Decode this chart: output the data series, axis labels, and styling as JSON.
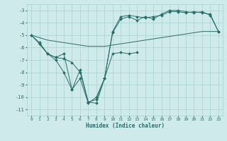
{
  "xlabel": "Humidex (Indice chaleur)",
  "bg_color": "#ceeaea",
  "line_color": "#2a6e6a",
  "grid_color": "#aacfcf",
  "xlim": [
    -0.5,
    23.5
  ],
  "ylim": [
    -11.5,
    -2.5
  ],
  "yticks": [
    -11,
    -10,
    -9,
    -8,
    -7,
    -6,
    -5,
    -4,
    -3
  ],
  "xticks": [
    0,
    1,
    2,
    3,
    4,
    5,
    6,
    7,
    8,
    9,
    10,
    11,
    12,
    13,
    14,
    15,
    16,
    17,
    18,
    19,
    20,
    21,
    22,
    23
  ],
  "series": [
    {
      "x": [
        0,
        1,
        2,
        3,
        4,
        5,
        6,
        7,
        8,
        9,
        10,
        11,
        12,
        13,
        14,
        15,
        16,
        17,
        18,
        19,
        20,
        21,
        22,
        23
      ],
      "y": [
        -5.0,
        -5.2,
        -5.4,
        -5.5,
        -5.6,
        -5.7,
        -5.8,
        -5.9,
        -5.9,
        -5.9,
        -5.8,
        -5.7,
        -5.6,
        -5.5,
        -5.4,
        -5.3,
        -5.2,
        -5.1,
        -5.0,
        -4.9,
        -4.8,
        -4.7,
        -4.7,
        -4.7
      ],
      "marker": null
    },
    {
      "x": [
        1,
        2,
        3,
        4,
        5,
        6,
        7,
        8,
        9,
        10,
        11,
        12,
        13
      ],
      "y": [
        -5.7,
        -6.5,
        -6.8,
        -6.9,
        -7.2,
        -8.0,
        -10.4,
        -10.5,
        -8.5,
        -6.5,
        -6.4,
        -6.5,
        -6.4
      ],
      "marker": "D"
    },
    {
      "x": [
        0,
        1,
        2,
        3,
        4,
        5,
        6,
        7,
        8,
        9,
        10,
        11,
        12,
        13,
        14,
        15,
        16,
        17,
        18,
        19,
        20,
        21,
        22,
        23
      ],
      "y": [
        -5.0,
        -5.6,
        -6.5,
        -7.0,
        -8.0,
        -9.4,
        -7.8,
        -10.4,
        -10.2,
        -8.5,
        -4.7,
        -3.5,
        -3.4,
        -3.5,
        -3.6,
        -3.5,
        -3.4,
        -3.1,
        -3.1,
        -3.2,
        -3.1,
        -3.2,
        -3.3,
        -4.7
      ],
      "marker": "D"
    },
    {
      "x": [
        0,
        1,
        2,
        3,
        4,
        5,
        6,
        7,
        8,
        9,
        10,
        11,
        12,
        13,
        14,
        15,
        16,
        17,
        18,
        19,
        20,
        21,
        22,
        23
      ],
      "y": [
        -5.0,
        -5.7,
        -6.5,
        -6.8,
        -6.5,
        -9.4,
        -8.5,
        -10.5,
        -10.0,
        -8.5,
        -4.8,
        -3.7,
        -3.5,
        -3.8,
        -3.5,
        -3.7,
        -3.3,
        -3.0,
        -3.0,
        -3.1,
        -3.2,
        -3.1,
        -3.4,
        -4.7
      ],
      "marker": "D"
    }
  ]
}
